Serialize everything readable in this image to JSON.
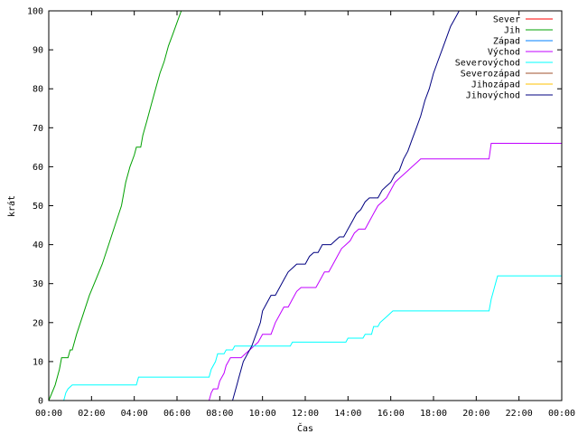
{
  "chart_data": {
    "type": "line",
    "title": "",
    "xlabel": "Čas",
    "ylabel": "krát",
    "xlim": [
      0,
      24
    ],
    "ylim": [
      0,
      100
    ],
    "x_ticks": [
      0,
      2,
      4,
      6,
      8,
      10,
      12,
      14,
      16,
      18,
      20,
      22,
      24
    ],
    "x_tick_labels": [
      "00:00",
      "02:00",
      "04:00",
      "06:00",
      "08:00",
      "10:00",
      "12:00",
      "14:00",
      "16:00",
      "18:00",
      "20:00",
      "22:00",
      "00:00"
    ],
    "y_ticks": [
      0,
      10,
      20,
      30,
      40,
      50,
      60,
      70,
      80,
      90,
      100
    ],
    "y_tick_labels": [
      "0",
      "10",
      "20",
      "30",
      "40",
      "50",
      "60",
      "70",
      "80",
      "90",
      "100"
    ],
    "grid": false,
    "legend_position": "top-right",
    "series": [
      {
        "name": "Sever",
        "color": "#ff0000",
        "points": []
      },
      {
        "name": "Jih",
        "color": "#00a000",
        "points": [
          [
            0.0,
            0
          ],
          [
            0.3,
            4
          ],
          [
            0.5,
            8
          ],
          [
            0.6,
            11
          ],
          [
            0.9,
            11
          ],
          [
            1.0,
            13
          ],
          [
            1.1,
            13
          ],
          [
            1.3,
            17
          ],
          [
            1.6,
            22
          ],
          [
            1.9,
            27
          ],
          [
            2.2,
            31
          ],
          [
            2.5,
            35
          ],
          [
            2.8,
            40
          ],
          [
            3.1,
            45
          ],
          [
            3.4,
            50
          ],
          [
            3.6,
            56
          ],
          [
            3.8,
            60
          ],
          [
            4.0,
            63
          ],
          [
            4.1,
            65
          ],
          [
            4.3,
            65
          ],
          [
            4.4,
            68
          ],
          [
            4.6,
            72
          ],
          [
            4.8,
            76
          ],
          [
            5.0,
            80
          ],
          [
            5.2,
            84
          ],
          [
            5.4,
            87
          ],
          [
            5.6,
            91
          ],
          [
            5.8,
            94
          ],
          [
            6.0,
            97
          ],
          [
            6.2,
            100
          ]
        ]
      },
      {
        "name": "Západ",
        "color": "#0080ff",
        "points": []
      },
      {
        "name": "Východ",
        "color": "#c000ff",
        "points": [
          [
            7.5,
            0
          ],
          [
            7.6,
            2
          ],
          [
            7.7,
            3
          ],
          [
            7.9,
            3
          ],
          [
            8.0,
            5
          ],
          [
            8.2,
            7
          ],
          [
            8.3,
            9
          ],
          [
            8.5,
            11
          ],
          [
            9.0,
            11
          ],
          [
            9.2,
            12
          ],
          [
            9.4,
            13
          ],
          [
            9.6,
            14
          ],
          [
            9.8,
            15
          ],
          [
            10.0,
            17
          ],
          [
            10.4,
            17
          ],
          [
            10.6,
            20
          ],
          [
            10.8,
            22
          ],
          [
            11.0,
            24
          ],
          [
            11.2,
            24
          ],
          [
            11.4,
            26
          ],
          [
            11.6,
            28
          ],
          [
            11.8,
            29
          ],
          [
            12.5,
            29
          ],
          [
            12.7,
            31
          ],
          [
            12.9,
            33
          ],
          [
            13.1,
            33
          ],
          [
            13.3,
            35
          ],
          [
            13.5,
            37
          ],
          [
            13.7,
            39
          ],
          [
            13.9,
            40
          ],
          [
            14.1,
            41
          ],
          [
            14.3,
            43
          ],
          [
            14.5,
            44
          ],
          [
            14.8,
            44
          ],
          [
            15.0,
            46
          ],
          [
            15.2,
            48
          ],
          [
            15.4,
            50
          ],
          [
            15.6,
            51
          ],
          [
            15.8,
            52
          ],
          [
            16.0,
            54
          ],
          [
            16.2,
            56
          ],
          [
            16.4,
            57
          ],
          [
            16.6,
            58
          ],
          [
            16.8,
            59
          ],
          [
            17.0,
            60
          ],
          [
            17.2,
            61
          ],
          [
            17.4,
            62
          ],
          [
            20.6,
            62
          ],
          [
            20.7,
            66
          ],
          [
            24.0,
            66
          ]
        ]
      },
      {
        "name": "Severovýchod",
        "color": "#00ffff",
        "points": [
          [
            0.7,
            0
          ],
          [
            0.8,
            2
          ],
          [
            0.9,
            3
          ],
          [
            1.1,
            4
          ],
          [
            4.1,
            4
          ],
          [
            4.2,
            6
          ],
          [
            7.5,
            6
          ],
          [
            7.6,
            8
          ],
          [
            7.8,
            10
          ],
          [
            7.9,
            12
          ],
          [
            8.2,
            12
          ],
          [
            8.3,
            13
          ],
          [
            8.6,
            13
          ],
          [
            8.7,
            14
          ],
          [
            11.3,
            14
          ],
          [
            11.4,
            15
          ],
          [
            13.9,
            15
          ],
          [
            14.0,
            16
          ],
          [
            14.7,
            16
          ],
          [
            14.8,
            17
          ],
          [
            15.1,
            17
          ],
          [
            15.2,
            19
          ],
          [
            15.4,
            19
          ],
          [
            15.5,
            20
          ],
          [
            15.7,
            21
          ],
          [
            15.9,
            22
          ],
          [
            16.1,
            23
          ],
          [
            20.6,
            23
          ],
          [
            20.7,
            26
          ],
          [
            20.8,
            28
          ],
          [
            20.9,
            30
          ],
          [
            21.0,
            32
          ],
          [
            24.0,
            32
          ]
        ]
      },
      {
        "name": "Severozápad",
        "color": "#a0522d",
        "points": []
      },
      {
        "name": "Jihozápad",
        "color": "#ffc000",
        "points": []
      },
      {
        "name": "Jihovýchod",
        "color": "#000080",
        "points": [
          [
            8.6,
            0
          ],
          [
            8.7,
            2
          ],
          [
            8.8,
            4
          ],
          [
            8.9,
            6
          ],
          [
            9.0,
            8
          ],
          [
            9.1,
            10
          ],
          [
            9.3,
            12
          ],
          [
            9.5,
            14
          ],
          [
            9.7,
            17
          ],
          [
            9.9,
            20
          ],
          [
            10.0,
            23
          ],
          [
            10.2,
            25
          ],
          [
            10.4,
            27
          ],
          [
            10.6,
            27
          ],
          [
            10.8,
            29
          ],
          [
            11.0,
            31
          ],
          [
            11.2,
            33
          ],
          [
            11.4,
            34
          ],
          [
            11.6,
            35
          ],
          [
            12.0,
            35
          ],
          [
            12.2,
            37
          ],
          [
            12.4,
            38
          ],
          [
            12.6,
            38
          ],
          [
            12.8,
            40
          ],
          [
            13.2,
            40
          ],
          [
            13.4,
            41
          ],
          [
            13.6,
            42
          ],
          [
            13.8,
            42
          ],
          [
            14.0,
            44
          ],
          [
            14.2,
            46
          ],
          [
            14.4,
            48
          ],
          [
            14.6,
            49
          ],
          [
            14.8,
            51
          ],
          [
            15.0,
            52
          ],
          [
            15.4,
            52
          ],
          [
            15.6,
            54
          ],
          [
            15.8,
            55
          ],
          [
            16.0,
            56
          ],
          [
            16.2,
            58
          ],
          [
            16.4,
            59
          ],
          [
            16.6,
            62
          ],
          [
            16.8,
            64
          ],
          [
            17.0,
            67
          ],
          [
            17.2,
            70
          ],
          [
            17.4,
            73
          ],
          [
            17.6,
            77
          ],
          [
            17.8,
            80
          ],
          [
            18.0,
            84
          ],
          [
            18.2,
            87
          ],
          [
            18.4,
            90
          ],
          [
            18.6,
            93
          ],
          [
            18.8,
            96
          ],
          [
            19.0,
            98
          ],
          [
            19.2,
            100
          ]
        ]
      }
    ]
  }
}
